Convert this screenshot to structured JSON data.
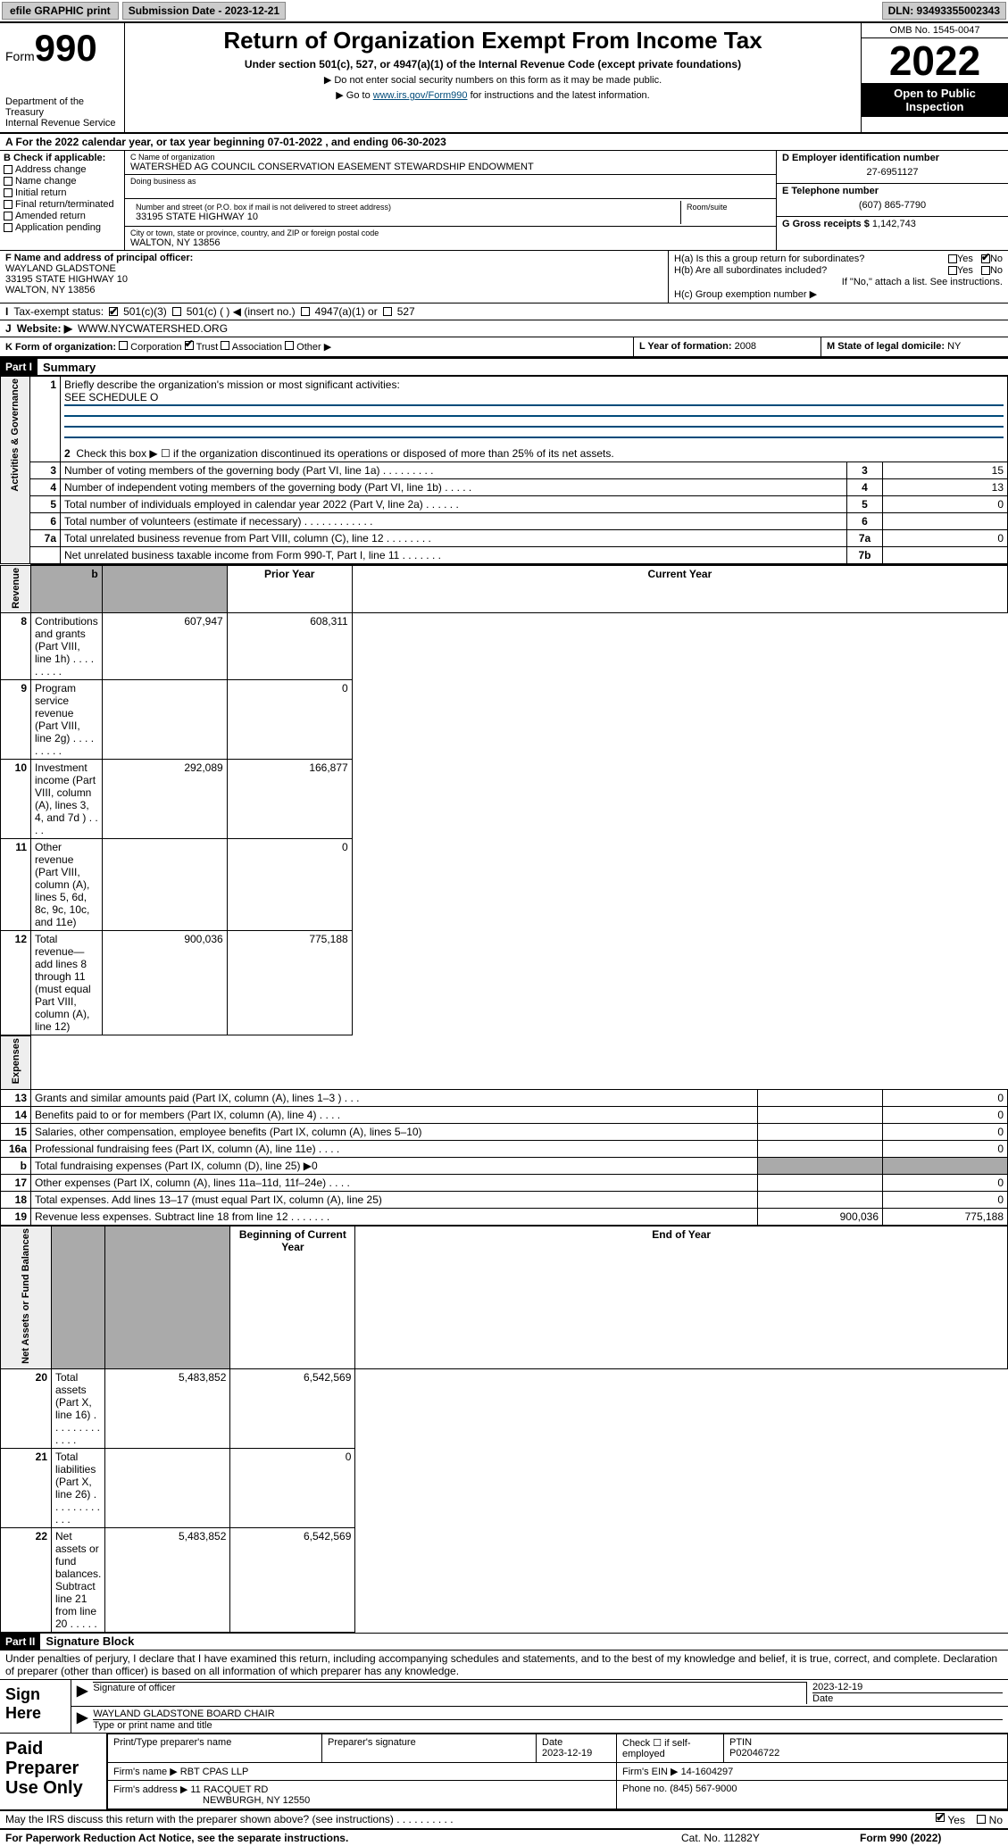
{
  "topbar": {
    "efile_label": "efile GRAPHIC print",
    "submission_label": "Submission Date - 2023-12-21",
    "dln_label": "DLN: 93493355002343"
  },
  "header": {
    "form_prefix": "Form",
    "form_number": "990",
    "dept": "Department of the Treasury",
    "irs": "Internal Revenue Service",
    "title": "Return of Organization Exempt From Income Tax",
    "subtitle": "Under section 501(c), 527, or 4947(a)(1) of the Internal Revenue Code (except private foundations)",
    "line1": "▶ Do not enter social security numbers on this form as it may be made public.",
    "line2_pre": "▶ Go to ",
    "line2_link": "www.irs.gov/Form990",
    "line2_post": " for instructions and the latest information.",
    "omb": "OMB No. 1545-0047",
    "year": "2022",
    "open": "Open to Public Inspection"
  },
  "taxyear": {
    "line": "A For the 2022 calendar year, or tax year beginning 07-01-2022    , and ending 06-30-2023"
  },
  "boxB": {
    "title": "B Check if applicable:",
    "opts": [
      "Address change",
      "Name change",
      "Initial return",
      "Final return/terminated",
      "Amended return",
      "Application pending"
    ]
  },
  "boxC": {
    "name_lbl": "C Name of organization",
    "name": "WATERSHED AG COUNCIL CONSERVATION EASEMENT STEWARDSHIP ENDOWMENT",
    "dba_lbl": "Doing business as",
    "addr_lbl": "Number and street (or P.O. box if mail is not delivered to street address)",
    "room_lbl": "Room/suite",
    "addr": "33195 STATE HIGHWAY 10",
    "city_lbl": "City or town, state or province, country, and ZIP or foreign postal code",
    "city": "WALTON, NY  13856"
  },
  "boxD": {
    "lbl": "D Employer identification number",
    "val": "27-6951127"
  },
  "boxE": {
    "lbl": "E Telephone number",
    "val": "(607) 865-7790"
  },
  "boxG": {
    "lbl": "G Gross receipts $",
    "val": "1,142,743"
  },
  "boxF": {
    "lbl": "F  Name and address of principal officer:",
    "name": "WAYLAND GLADSTONE",
    "addr1": "33195 STATE HIGHWAY 10",
    "addr2": "WALTON, NY  13856"
  },
  "boxH": {
    "a_lbl": "H(a)  Is this a group return for subordinates?",
    "b_lbl": "H(b)  Are all subordinates included?",
    "note": "If \"No,\" attach a list. See instructions.",
    "c_lbl": "H(c)  Group exemption number ▶",
    "yes": "Yes",
    "no": "No"
  },
  "boxI": {
    "lbl": "Tax-exempt status:",
    "o1": "501(c)(3)",
    "o2": "501(c) (  ) ◀ (insert no.)",
    "o3": "4947(a)(1) or",
    "o4": "527"
  },
  "boxJ": {
    "lbl": "Website: ▶",
    "val": " WWW.NYCWATERSHED.ORG"
  },
  "boxK": {
    "lbl": "K Form of organization:",
    "opts": [
      "Corporation",
      "Trust",
      "Association",
      "Other ▶"
    ]
  },
  "boxL": {
    "lbl": "L Year of formation:",
    "val": "2008"
  },
  "boxM": {
    "lbl": "M State of legal domicile:",
    "val": "NY"
  },
  "part1": {
    "tag": "Part I",
    "title": "Summary",
    "q1": "Briefly describe the organization's mission or most significant activities:",
    "q1_ans": "SEE SCHEDULE O",
    "q2": "Check this box ▶ ☐  if the organization discontinued its operations or disposed of more than 25% of its net assets.",
    "rows_gov": [
      {
        "n": "3",
        "d": "Number of voting members of the governing body (Part VI, line 1a)   .    .    .    .    .    .    .    .    .",
        "b": "3",
        "v": "15"
      },
      {
        "n": "4",
        "d": "Number of independent voting members of the governing body (Part VI, line 1b)   .    .    .    .    .",
        "b": "4",
        "v": "13"
      },
      {
        "n": "5",
        "d": "Total number of individuals employed in calendar year 2022 (Part V, line 2a)   .    .    .    .    .    .",
        "b": "5",
        "v": "0"
      },
      {
        "n": "6",
        "d": "Total number of volunteers (estimate if necessary)   .    .    .    .    .    .    .    .    .    .    .    .",
        "b": "6",
        "v": ""
      },
      {
        "n": "7a",
        "d": "Total unrelated business revenue from Part VIII, column (C), line 12   .    .    .    .    .    .    .    .",
        "b": "7a",
        "v": "0"
      },
      {
        "n": "",
        "d": "Net unrelated business taxable income from Form 990-T, Part I, line 11   .    .    .    .    .    .    .",
        "b": "7b",
        "v": ""
      }
    ],
    "side_gov": "Activities & Governance",
    "side_rev": "Revenue",
    "side_exp": "Expenses",
    "side_net": "Net Assets or Fund Balances",
    "col_prior": "Prior Year",
    "col_curr": "Current Year",
    "rows_rev": [
      {
        "n": "8",
        "d": "Contributions and grants (Part VIII, line 1h)   .    .    .    .    .    .    .    .    .",
        "p": "607,947",
        "c": "608,311"
      },
      {
        "n": "9",
        "d": "Program service revenue (Part VIII, line 2g)   .    .    .    .    .    .    .    .    .",
        "p": "",
        "c": "0"
      },
      {
        "n": "10",
        "d": "Investment income (Part VIII, column (A), lines 3, 4, and 7d )   .    .    .    .",
        "p": "292,089",
        "c": "166,877"
      },
      {
        "n": "11",
        "d": "Other revenue (Part VIII, column (A), lines 5, 6d, 8c, 9c, 10c, and 11e)",
        "p": "",
        "c": "0"
      },
      {
        "n": "12",
        "d": "Total revenue—add lines 8 through 11 (must equal Part VIII, column (A), line 12)",
        "p": "900,036",
        "c": "775,188"
      }
    ],
    "rows_exp": [
      {
        "n": "13",
        "d": "Grants and similar amounts paid (Part IX, column (A), lines 1–3 )   .    .    .",
        "p": "",
        "c": "0"
      },
      {
        "n": "14",
        "d": "Benefits paid to or for members (Part IX, column (A), line 4)   .    .    .    .",
        "p": "",
        "c": "0"
      },
      {
        "n": "15",
        "d": "Salaries, other compensation, employee benefits (Part IX, column (A), lines 5–10)",
        "p": "",
        "c": "0"
      },
      {
        "n": "16a",
        "d": "Professional fundraising fees (Part IX, column (A), line 11e)   .    .    .    .",
        "p": "",
        "c": "0"
      },
      {
        "n": "b",
        "d": "Total fundraising expenses (Part IX, column (D), line 25) ▶0",
        "p": "SHADE",
        "c": "SHADE"
      },
      {
        "n": "17",
        "d": "Other expenses (Part IX, column (A), lines 11a–11d, 11f–24e)   .    .    .    .",
        "p": "",
        "c": "0"
      },
      {
        "n": "18",
        "d": "Total expenses. Add lines 13–17 (must equal Part IX, column (A), line 25)",
        "p": "",
        "c": "0"
      },
      {
        "n": "19",
        "d": "Revenue less expenses. Subtract line 18 from line 12   .    .    .    .    .    .    .",
        "p": "900,036",
        "c": "775,188"
      }
    ],
    "col_beg": "Beginning of Current Year",
    "col_end": "End of Year",
    "rows_net": [
      {
        "n": "20",
        "d": "Total assets (Part X, line 16)   .    .    .    .    .    .    .    .    .    .    .    .    .",
        "p": "5,483,852",
        "c": "6,542,569"
      },
      {
        "n": "21",
        "d": "Total liabilities (Part X, line 26)   .    .    .    .    .    .    .    .    .    .    .    .",
        "p": "",
        "c": "0"
      },
      {
        "n": "22",
        "d": "Net assets or fund balances. Subtract line 21 from line 20   .    .    .    .    .",
        "p": "5,483,852",
        "c": "6,542,569"
      }
    ]
  },
  "part2": {
    "tag": "Part II",
    "title": "Signature Block",
    "decl": "Under penalties of perjury, I declare that I have examined this return, including accompanying schedules and statements, and to the best of my knowledge and belief, it is true, correct, and complete. Declaration of preparer (other than officer) is based on all information of which preparer has any knowledge.",
    "sign_here": "Sign Here",
    "sig_lbl": "Signature of officer",
    "date_lbl": "Date",
    "sig_date": "2023-12-19",
    "officer": "WAYLAND GLADSTONE  BOARD CHAIR",
    "officer_lbl": "Type or print name and title",
    "paid": "Paid Preparer Use Only",
    "pp_name_lbl": "Print/Type preparer's name",
    "pp_sig_lbl": "Preparer's signature",
    "pp_date_lbl": "Date",
    "pp_date": "2023-12-19",
    "pp_self_lbl": "Check ☐ if self-employed",
    "ptin_lbl": "PTIN",
    "ptin": "P02046722",
    "firm_name_lbl": "Firm's name    ▶",
    "firm_name": "RBT CPAS LLP",
    "firm_ein_lbl": "Firm's EIN ▶",
    "firm_ein": "14-1604297",
    "firm_addr_lbl": "Firm's address ▶",
    "firm_addr1": "11 RACQUET RD",
    "firm_addr2": "NEWBURGH, NY  12550",
    "phone_lbl": "Phone no.",
    "phone": "(845) 567-9000"
  },
  "footer": {
    "discuss": "May the IRS discuss this return with the preparer shown above? (see instructions)   .    .    .    .    .    .    .    .    .    .",
    "yes": "Yes",
    "no": "No",
    "pra": "For Paperwork Reduction Act Notice, see the separate instructions.",
    "cat": "Cat. No. 11282Y",
    "form": "Form 990 (2022)"
  }
}
